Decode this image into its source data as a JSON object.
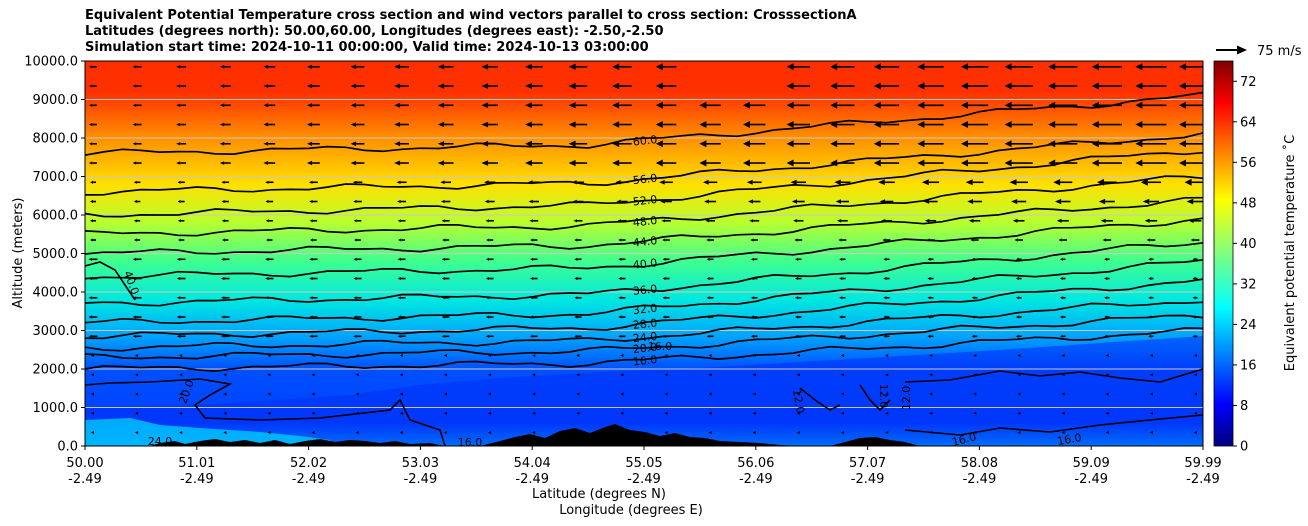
{
  "chart_data": {
    "type": "heatmap",
    "title_lines": [
      "Equivalent Potential Temperature cross section and wind vectors parallel to cross section: CrosssectionA",
      "Latitudes (degrees north): 50.00,60.00, Longitudes (degrees east): -2.50,-2.50",
      "Simulation start time: 2024-10-11 00:00:00, Valid time: 2024-10-13 03:00:00"
    ],
    "xlabel": "Latitude (degrees N)",
    "xlabel2": "Longitude (degrees E)",
    "ylabel": "Altitude (meters)",
    "x_ticks": [
      {
        "lat": "50.00",
        "lon": "-2.49"
      },
      {
        "lat": "51.01",
        "lon": "-2.49"
      },
      {
        "lat": "52.02",
        "lon": "-2.49"
      },
      {
        "lat": "53.03",
        "lon": "-2.49"
      },
      {
        "lat": "54.04",
        "lon": "-2.49"
      },
      {
        "lat": "55.05",
        "lon": "-2.49"
      },
      {
        "lat": "56.06",
        "lon": "-2.49"
      },
      {
        "lat": "57.07",
        "lon": "-2.49"
      },
      {
        "lat": "58.08",
        "lon": "-2.49"
      },
      {
        "lat": "59.09",
        "lon": "-2.49"
      },
      {
        "lat": "59.99",
        "lon": "-2.49"
      }
    ],
    "y_ticks": [
      "0.0",
      "1000.0",
      "2000.0",
      "3000.0",
      "4000.0",
      "5000.0",
      "6000.0",
      "7000.0",
      "8000.0",
      "9000.0",
      "10000.0"
    ],
    "ylim": [
      0,
      10000
    ],
    "grid": "horizontal",
    "colorbar": {
      "label": "Equivalent potential temperature ˚C",
      "ticks": [
        "0",
        "8",
        "16",
        "24",
        "32",
        "40",
        "48",
        "56",
        "64",
        "72"
      ],
      "range": [
        0,
        76
      ],
      "colormap": "jet"
    },
    "wind_key": "75 m/s",
    "wind_direction": "parallel to cross section, pointing toward lower latitude",
    "contour_labels": [
      "60.0",
      "56.0",
      "52.0",
      "48.0",
      "44.0",
      "40.0",
      "36.0",
      "32.0",
      "28.0",
      "24.0",
      "16.0",
      "12.0",
      "20.0",
      "24.0"
    ],
    "isotherms": [
      {
        "label": "16.0",
        "alt_start": 2000,
        "alt_end": 3000
      },
      {
        "label": "20.0",
        "alt_start": 2300,
        "alt_end": 3400
      },
      {
        "label": "24.0",
        "alt_start": 2550,
        "alt_end": 3800
      },
      {
        "label": "28.0",
        "alt_start": 2850,
        "alt_end": 4300
      },
      {
        "label": "32.0",
        "alt_start": 3200,
        "alt_end": 4800
      },
      {
        "label": "36.0",
        "alt_start": 3700,
        "alt_end": 5300
      },
      {
        "label": "40.0",
        "alt_start": 4400,
        "alt_end": 5900
      },
      {
        "label": "44.0",
        "alt_start": 5000,
        "alt_end": 6400
      },
      {
        "label": "48.0",
        "alt_start": 5500,
        "alt_end": 7000
      },
      {
        "label": "52.0",
        "alt_start": 6000,
        "alt_end": 7700
      },
      {
        "label": "56.0",
        "alt_start": 6600,
        "alt_end": 8100
      },
      {
        "label": "60.0",
        "alt_start": 7600,
        "alt_end": 9100
      }
    ]
  }
}
